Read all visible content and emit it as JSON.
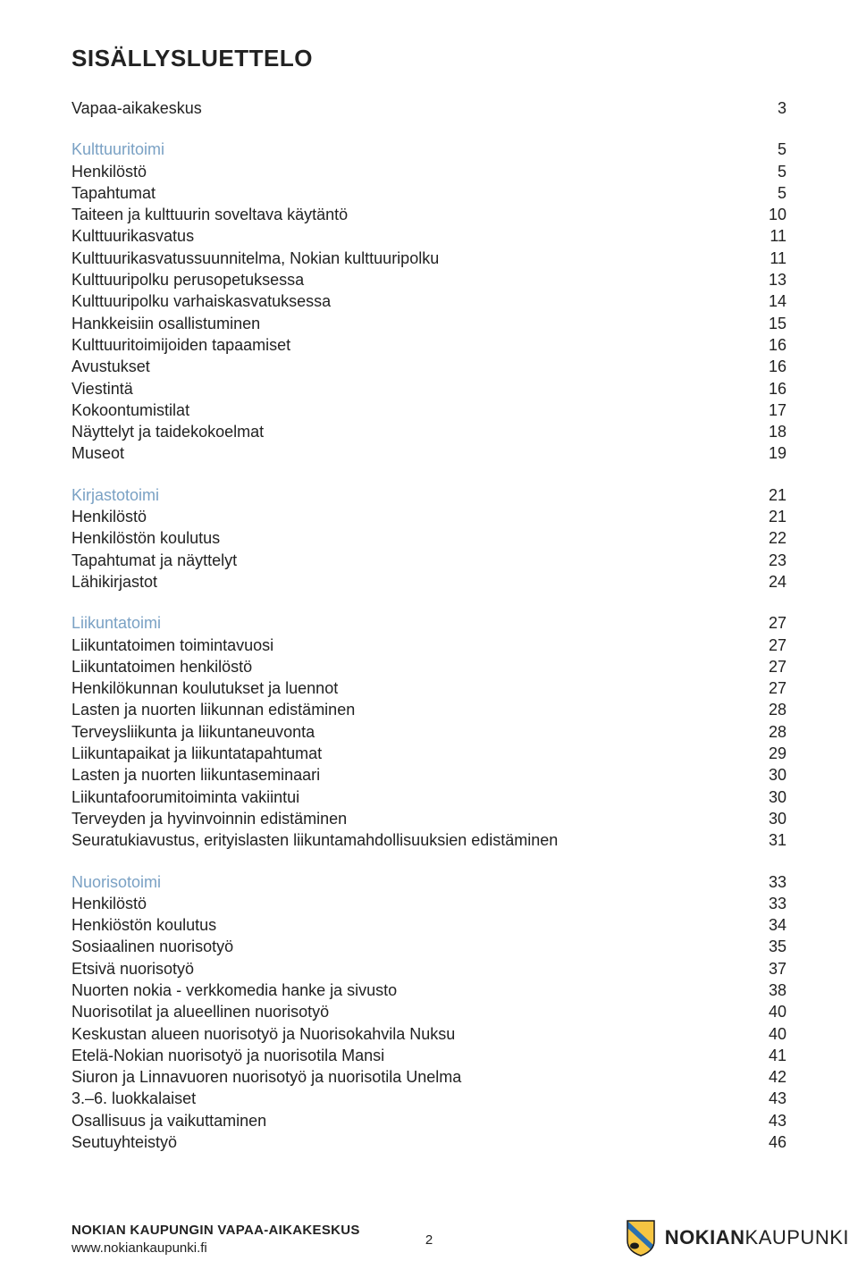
{
  "colors": {
    "section_head": "#7aa1c4",
    "text": "#222222",
    "background": "#ffffff",
    "shield_yellow": "#f5c542",
    "shield_blue": "#2a6fb0",
    "shield_black": "#1a1a1a"
  },
  "typography": {
    "title_fontsize": 26,
    "body_fontsize": 18,
    "footer_fontsize": 15,
    "logo_fontsize": 22
  },
  "title": "SISÄLLYSLUETTELO",
  "groups": [
    {
      "items": [
        {
          "label": "Vapaa-aikakeskus",
          "page": "3",
          "head": false
        }
      ]
    },
    {
      "items": [
        {
          "label": "Kulttuuritoimi",
          "page": "5",
          "head": true
        },
        {
          "label": "Henkilöstö",
          "page": "5",
          "head": false
        },
        {
          "label": "Tapahtumat",
          "page": "5",
          "head": false
        },
        {
          "label": "Taiteen ja kulttuurin soveltava käytäntö",
          "page": "10",
          "head": false
        },
        {
          "label": "Kulttuurikasvatus",
          "page": "11",
          "head": false
        },
        {
          "label": "Kulttuurikasvatussuunnitelma, Nokian kulttuuripolku",
          "page": "11",
          "head": false
        },
        {
          "label": "Kulttuuripolku perusopetuksessa",
          "page": "13",
          "head": false
        },
        {
          "label": "Kulttuuripolku varhaiskasvatuksessa",
          "page": "14",
          "head": false
        },
        {
          "label": "Hankkeisiin osallistuminen",
          "page": "15",
          "head": false
        },
        {
          "label": "Kulttuuritoimijoiden tapaamiset",
          "page": "16",
          "head": false
        },
        {
          "label": "Avustukset",
          "page": "16",
          "head": false
        },
        {
          "label": "Viestintä",
          "page": "16",
          "head": false
        },
        {
          "label": "Kokoontumistilat",
          "page": "17",
          "head": false
        },
        {
          "label": "Näyttelyt ja taidekokoelmat",
          "page": "18",
          "head": false
        },
        {
          "label": "Museot",
          "page": "19",
          "head": false
        }
      ]
    },
    {
      "items": [
        {
          "label": "Kirjastotoimi",
          "page": "21",
          "head": true
        },
        {
          "label": "Henkilöstö",
          "page": "21",
          "head": false
        },
        {
          "label": "Henkilöstön koulutus",
          "page": "22",
          "head": false
        },
        {
          "label": "Tapahtumat ja näyttelyt",
          "page": "23",
          "head": false
        },
        {
          "label": "Lähikirjastot",
          "page": "24",
          "head": false
        }
      ]
    },
    {
      "items": [
        {
          "label": "Liikuntatoimi",
          "page": "27",
          "head": true
        },
        {
          "label": "Liikuntatoimen toimintavuosi",
          "page": "27",
          "head": false
        },
        {
          "label": "Liikuntatoimen henkilöstö",
          "page": "27",
          "head": false
        },
        {
          "label": "Henkilökunnan koulutukset ja luennot",
          "page": "27",
          "head": false
        },
        {
          "label": "Lasten ja nuorten liikunnan edistäminen",
          "page": "28",
          "head": false
        },
        {
          "label": "Terveysliikunta ja liikuntaneuvonta",
          "page": "28",
          "head": false
        },
        {
          "label": "Liikuntapaikat ja liikuntatapahtumat",
          "page": "29",
          "head": false
        },
        {
          "label": "Lasten ja nuorten liikuntaseminaari",
          "page": "30",
          "head": false
        },
        {
          "label": "Liikuntafoorumitoiminta vakiintui",
          "page": "30",
          "head": false
        },
        {
          "label": "Terveyden ja hyvinvoinnin edistäminen",
          "page": "30",
          "head": false
        },
        {
          "label": "Seuratukiavustus, erityislasten liikuntamahdollisuuksien edistäminen",
          "page": "31",
          "head": false
        }
      ]
    },
    {
      "items": [
        {
          "label": "Nuorisotoimi",
          "page": "33",
          "head": true
        },
        {
          "label": "Henkilöstö",
          "page": "33",
          "head": false
        },
        {
          "label": "Henkiöstön koulutus",
          "page": "34",
          "head": false
        },
        {
          "label": "Sosiaalinen nuorisotyö",
          "page": "35",
          "head": false
        },
        {
          "label": "Etsivä nuorisotyö",
          "page": "37",
          "head": false
        },
        {
          "label": "Nuorten nokia - verkkomedia hanke ja sivusto",
          "page": "38",
          "head": false
        },
        {
          "label": "Nuorisotilat ja alueellinen nuorisotyö",
          "page": "40",
          "head": false
        },
        {
          "label": "Keskustan alueen nuorisotyö ja Nuorisokahvila Nuksu",
          "page": "40",
          "head": false
        },
        {
          "label": "Etelä-Nokian nuorisotyö ja nuorisotila Mansi",
          "page": "41",
          "head": false
        },
        {
          "label": "Siuron ja Linnavuoren nuorisotyö ja nuorisotila Unelma",
          "page": "42",
          "head": false
        },
        {
          "label": "3.–6. luokkalaiset",
          "page": "43",
          "head": false
        },
        {
          "label": "Osallisuus ja vaikuttaminen",
          "page": "43",
          "head": false
        },
        {
          "label": "Seutuyhteistyö",
          "page": "46",
          "head": false
        }
      ]
    }
  ],
  "footer": {
    "line1": "NOKIAN KAUPUNGIN VAPAA-AIKAKESKUS",
    "line2": "www.nokiankaupunki.fi",
    "page_number": "2",
    "logo_bold": "NOKIAN",
    "logo_light": "KAUPUNKI"
  }
}
